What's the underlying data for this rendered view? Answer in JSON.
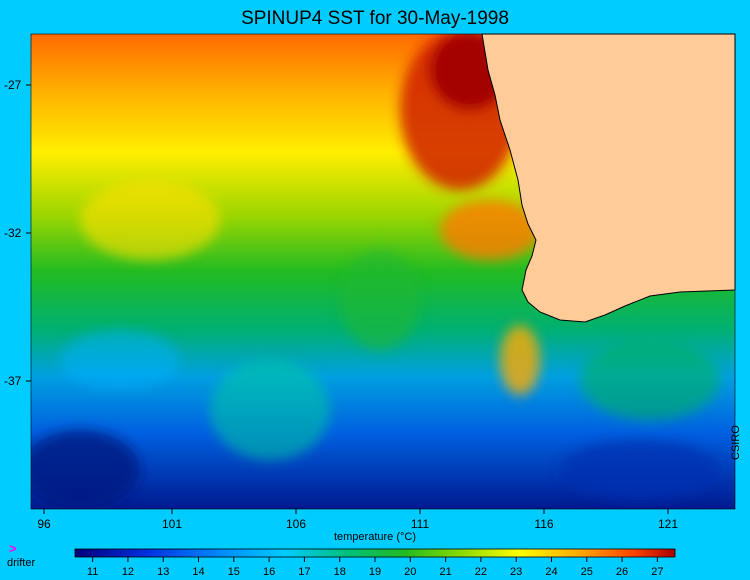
{
  "title": "SPINUP4 SST for 30-May-1998",
  "y_axis": {
    "ticks": [
      "-27",
      "-32",
      "-37"
    ],
    "values": [
      -27,
      -32,
      -37
    ],
    "range": [
      -25.3,
      -41.9
    ]
  },
  "x_axis": {
    "ticks": [
      "96",
      "101",
      "106",
      "111",
      "116",
      "121"
    ],
    "values": [
      96,
      101,
      106,
      111,
      116,
      121
    ],
    "range": [
      95.9,
      123.9
    ],
    "label": "temperature (°C)"
  },
  "credit": "CSIRO",
  "legend": {
    "drifter_icon": ">",
    "drifter_label": "drifter"
  },
  "colorbar": {
    "ticks": [
      "11",
      "12",
      "13",
      "14",
      "15",
      "16",
      "17",
      "18",
      "19",
      "20",
      "21",
      "22",
      "23",
      "24",
      "25",
      "26",
      "27"
    ],
    "values": [
      11,
      12,
      13,
      14,
      15,
      16,
      17,
      18,
      19,
      20,
      21,
      22,
      23,
      24,
      25,
      26,
      27
    ],
    "range": [
      10.5,
      27.5
    ]
  },
  "colors": {
    "background": "#00ccff",
    "land": "#ffcc99",
    "coastline": "#000000"
  }
}
